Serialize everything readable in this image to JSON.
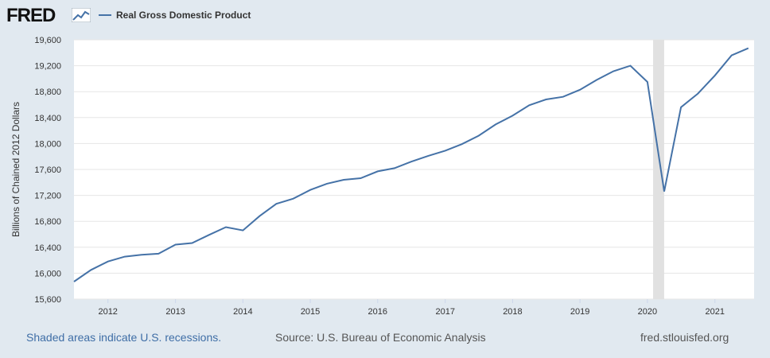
{
  "header": {
    "logo_text": "FRED",
    "logo_icon": "line-chart-icon",
    "legend_label": "Real Gross Domestic Product",
    "legend_color": "#4572a7"
  },
  "chart_data": {
    "type": "line",
    "ylabel": "Billions of Chained 2012 Dollars",
    "ylim": [
      15600,
      19600
    ],
    "y_ticks": [
      "15,600",
      "16,000",
      "16,400",
      "16,800",
      "17,200",
      "17,600",
      "18,000",
      "18,400",
      "18,800",
      "19,200",
      "19,600"
    ],
    "x_ticks": [
      "2012",
      "2013",
      "2014",
      "2015",
      "2016",
      "2017",
      "2018",
      "2019",
      "2020",
      "2021"
    ],
    "grid": true,
    "recession": {
      "start": "2020-02",
      "end": "2020-04"
    },
    "series": [
      {
        "name": "Real Gross Domestic Product",
        "color": "#4572a7",
        "x": [
          "2011-07-01",
          "2011-10-01",
          "2012-01-01",
          "2012-04-01",
          "2012-07-01",
          "2012-10-01",
          "2013-01-01",
          "2013-04-01",
          "2013-07-01",
          "2013-10-01",
          "2014-01-01",
          "2014-04-01",
          "2014-07-01",
          "2014-10-01",
          "2015-01-01",
          "2015-04-01",
          "2015-07-01",
          "2015-10-01",
          "2016-01-01",
          "2016-04-01",
          "2016-07-01",
          "2016-10-01",
          "2017-01-01",
          "2017-04-01",
          "2017-07-01",
          "2017-10-01",
          "2018-01-01",
          "2018-04-01",
          "2018-07-01",
          "2018-10-01",
          "2019-01-01",
          "2019-04-01",
          "2019-07-01",
          "2019-10-01",
          "2020-01-01",
          "2020-04-01",
          "2020-07-01",
          "2020-10-01",
          "2021-01-01",
          "2021-04-01",
          "2021-07-01"
        ],
        "values": [
          15870,
          16050,
          16180,
          16255,
          16285,
          16300,
          16440,
          16465,
          16590,
          16710,
          16660,
          16880,
          17070,
          17150,
          17285,
          17380,
          17440,
          17465,
          17570,
          17620,
          17720,
          17810,
          17890,
          17990,
          18120,
          18295,
          18430,
          18590,
          18680,
          18720,
          18830,
          18980,
          19115,
          19200,
          18950,
          17260,
          18560,
          18770,
          19050,
          19360,
          19470
        ]
      }
    ]
  },
  "footer": {
    "recession_note": "Shaded areas indicate U.S. recessions.",
    "source": "Source: U.S. Bureau of Economic Analysis",
    "site": "fred.stlouisfed.org"
  }
}
